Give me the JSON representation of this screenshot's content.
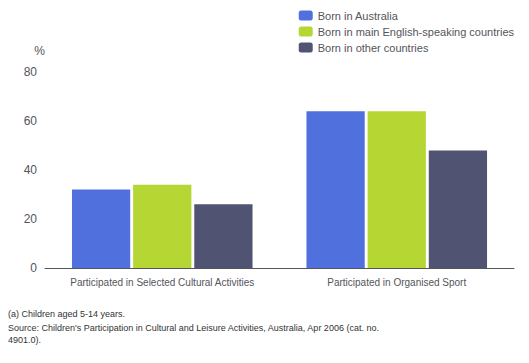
{
  "chart_data": {
    "type": "bar",
    "categories": [
      "Participated in Selected Cultural Activities",
      "Participated in Organised Sport"
    ],
    "series": [
      {
        "name": "Born in Australia",
        "values": [
          32,
          64
        ]
      },
      {
        "name": "Born in main English-speaking countries",
        "values": [
          34,
          64
        ]
      },
      {
        "name": "Born in other countries",
        "values": [
          26,
          48
        ]
      }
    ],
    "ylabel": "%",
    "ylim": [
      0,
      80
    ],
    "yticks": [
      0,
      20,
      40,
      60,
      80
    ],
    "grid": false,
    "legend": "upper right",
    "annotations": [
      "(a) Children aged 5-14 years.",
      "Source: Children's Participation in Cultural and Leisure Activities, Australia, Apr 2006 (cat. no. 4901.0)."
    ]
  }
}
